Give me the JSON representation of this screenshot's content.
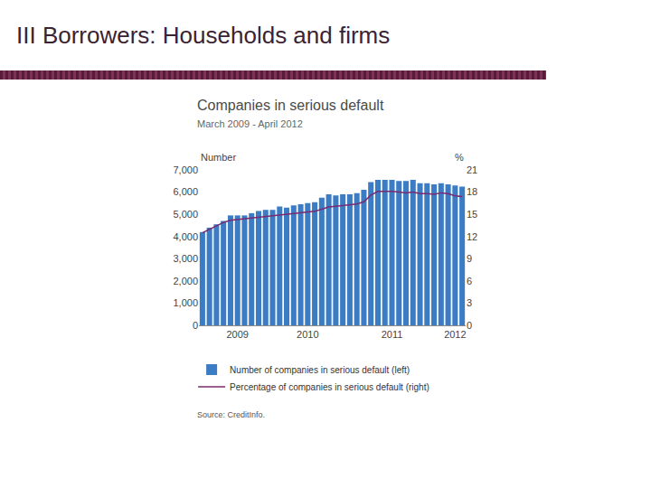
{
  "header": {
    "title": "III Borrowers: Households and firms"
  },
  "chart_data": {
    "type": "bar",
    "title": "Companies in serious default",
    "subtitle": "March 2009 - April 2012",
    "source": "Source: CreditInfo.",
    "ylabel": "Number",
    "y2label": "%",
    "categories": [
      null,
      null,
      null,
      null,
      null,
      "2009",
      null,
      null,
      null,
      null,
      null,
      null,
      null,
      null,
      null,
      "2010",
      null,
      null,
      null,
      null,
      null,
      null,
      null,
      null,
      null,
      null,
      null,
      "2011",
      null,
      null,
      null,
      null,
      null,
      null,
      null,
      null,
      "2012",
      null
    ],
    "series": [
      {
        "name": "Number of companies in serious default (left)",
        "type": "bar",
        "color": "#3b7cc4",
        "values": [
          4200,
          4400,
          4550,
          4700,
          4950,
          4950,
          4950,
          5050,
          5150,
          5200,
          5200,
          5350,
          5300,
          5400,
          5450,
          5500,
          5550,
          5750,
          5900,
          5850,
          5900,
          5900,
          5950,
          6100,
          6450,
          6550,
          6550,
          6550,
          6500,
          6500,
          6550,
          6400,
          6400,
          6350,
          6400,
          6350,
          6300,
          6250
        ]
      },
      {
        "name": "Percentage of companies in serious default (right)",
        "type": "line",
        "axis": "y2",
        "color": "#7a2a6e",
        "values": [
          12.5,
          13.0,
          13.5,
          13.9,
          14.2,
          14.3,
          14.4,
          14.5,
          14.6,
          14.7,
          14.8,
          14.9,
          15.0,
          15.1,
          15.2,
          15.3,
          15.4,
          15.7,
          16.0,
          16.1,
          16.2,
          16.3,
          16.4,
          16.7,
          17.6,
          18.1,
          18.1,
          18.1,
          18.0,
          17.9,
          18.0,
          17.8,
          17.8,
          17.7,
          17.9,
          17.8,
          17.5,
          17.4
        ]
      }
    ],
    "ylim": [
      0,
      7000
    ],
    "yticks": [
      0,
      {
        "value": 1000,
        "label": "1,000"
      },
      {
        "value": 2000,
        "label": "2,000"
      },
      {
        "value": 3000,
        "label": "3,000"
      },
      {
        "value": 4000,
        "label": "4,000"
      },
      {
        "value": 5000,
        "label": "5,000"
      },
      {
        "value": 6000,
        "label": "6,000"
      },
      {
        "value": 7000,
        "label": "7,000"
      }
    ],
    "y2lim": [
      0,
      21
    ],
    "y2ticks": [
      0,
      3,
      6,
      9,
      12,
      15,
      18,
      21
    ],
    "grid": false,
    "legend": "bottom"
  }
}
